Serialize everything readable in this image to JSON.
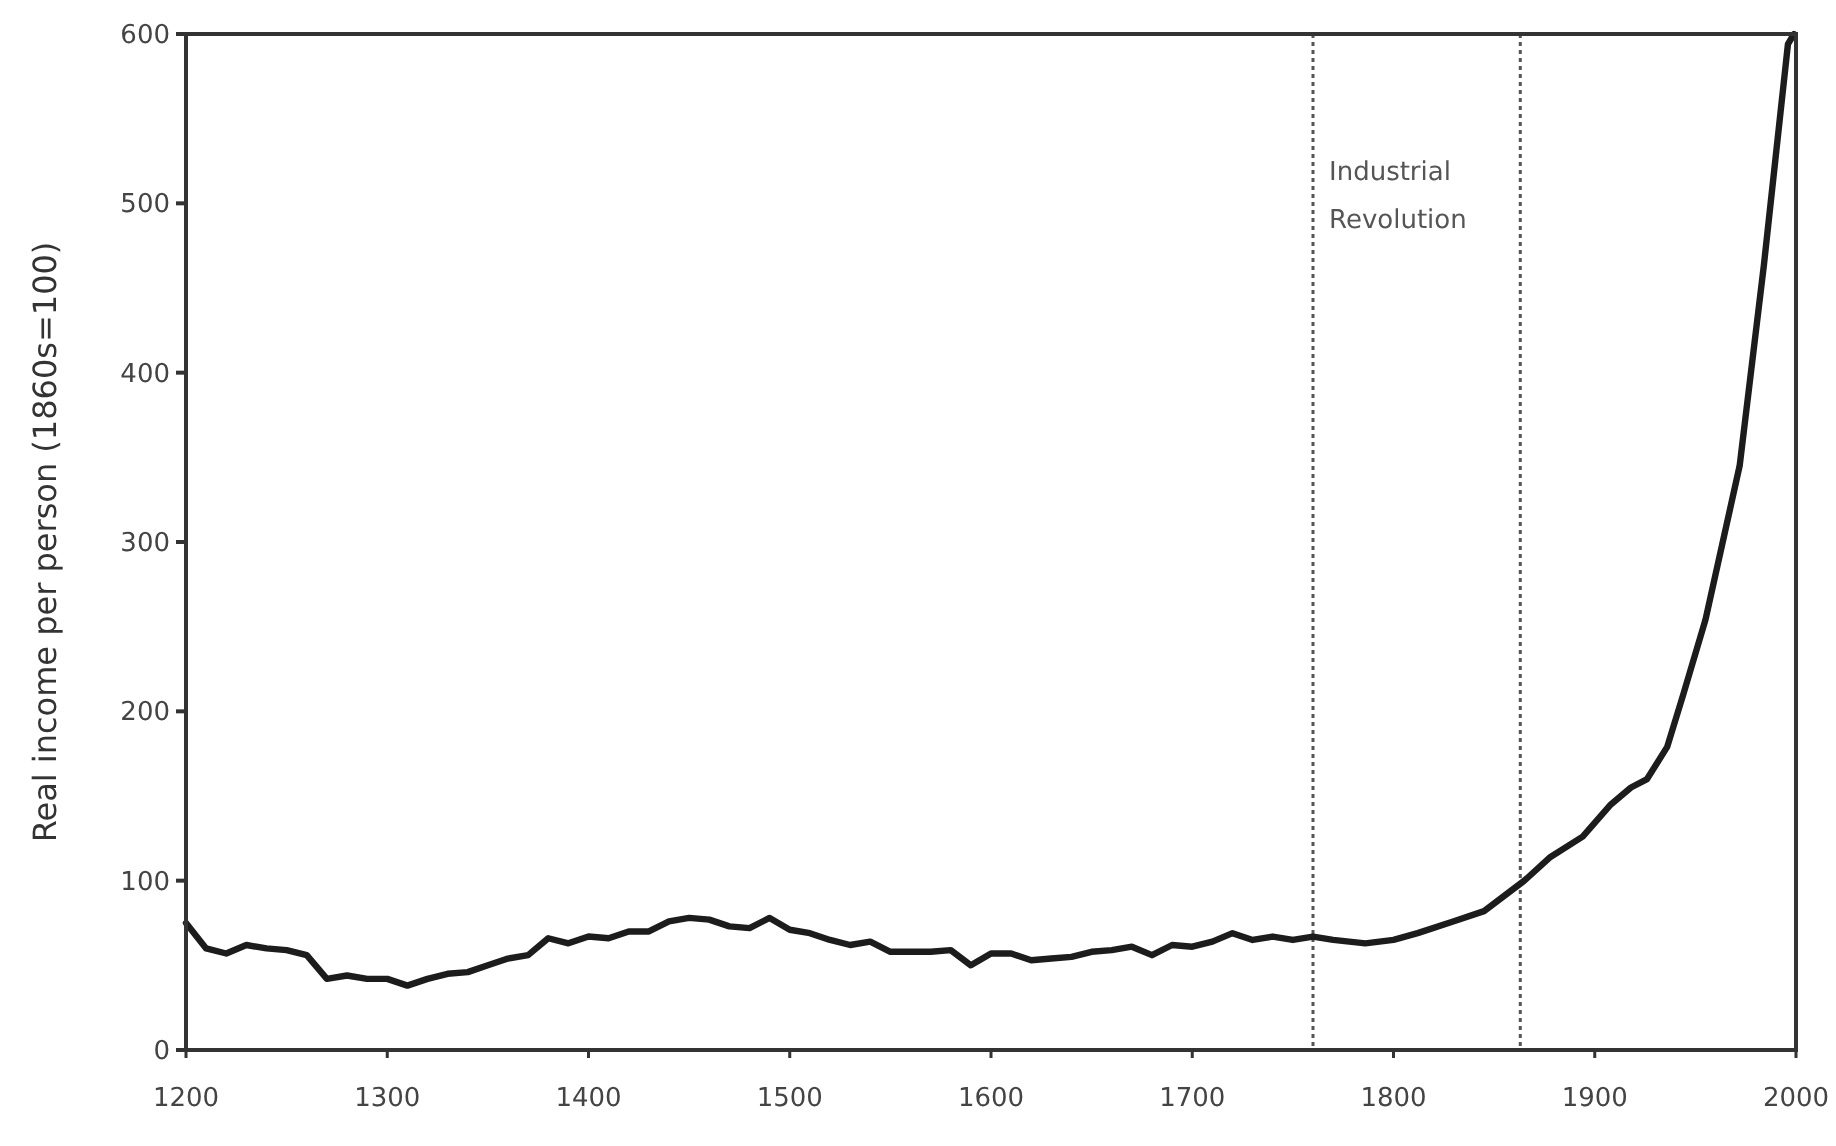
{
  "chart_data": {
    "type": "line",
    "ylabel": "Real income per person (1860s=100)",
    "x": [
      1200,
      1210,
      1220,
      1230,
      1240,
      1250,
      1260,
      1270,
      1280,
      1290,
      1300,
      1310,
      1320,
      1330,
      1340,
      1350,
      1360,
      1370,
      1380,
      1390,
      1400,
      1410,
      1420,
      1430,
      1440,
      1450,
      1460,
      1470,
      1480,
      1490,
      1500,
      1510,
      1520,
      1530,
      1540,
      1550,
      1560,
      1570,
      1580,
      1590,
      1600,
      1610,
      1620,
      1630,
      1640,
      1650,
      1660,
      1670,
      1680,
      1690,
      1700,
      1710,
      1720,
      1730,
      1740,
      1750,
      1760,
      1770,
      1786,
      1800,
      1812,
      1830,
      1845,
      1865,
      1878,
      1894,
      1908,
      1918,
      1926,
      1936,
      1944,
      1955,
      1972,
      1984,
      1996,
      1999
    ],
    "series": [
      {
        "color": "#1c1c1c",
        "values": [
          75,
          60,
          57,
          62,
          60,
          59,
          56,
          42,
          44,
          42,
          42,
          38,
          42,
          45,
          46,
          50,
          54,
          56,
          66,
          63,
          67,
          66,
          70,
          70,
          76,
          78,
          77,
          73,
          72,
          78,
          71,
          69,
          65,
          62,
          64,
          58,
          58,
          58,
          59,
          50,
          57,
          57,
          53,
          54,
          55,
          58,
          59,
          61,
          56,
          62,
          61,
          64,
          69,
          65,
          67,
          65,
          67,
          65,
          63,
          65,
          69,
          76,
          82,
          100,
          114,
          126,
          145,
          155,
          160,
          179,
          210,
          254,
          345,
          463,
          594,
          600
        ]
      }
    ],
    "xlim": [
      1200,
      2000
    ],
    "ylim": [
      0,
      600
    ],
    "xticks": [
      1200,
      1300,
      1400,
      1500,
      1600,
      1700,
      1800,
      1900,
      2000
    ],
    "yticks": [
      0,
      100,
      200,
      300,
      400,
      500,
      600
    ],
    "ref_lines": [
      {
        "axis": "x",
        "value": 1760,
        "label": "Industrial Revolution",
        "color": "#555555",
        "line_style": "dotted"
      },
      {
        "axis": "x",
        "value": 1863,
        "color": "#555555",
        "line_style": "dotted"
      }
    ],
    "grid": false,
    "marker": "none",
    "line_style": "solid"
  }
}
